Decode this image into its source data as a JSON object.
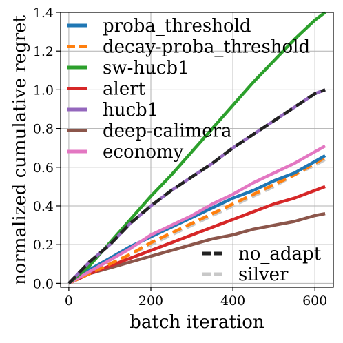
{
  "chart_data": {
    "type": "line",
    "title": "",
    "xlabel": "batch iteration",
    "ylabel": "normalized cumulative regret",
    "xlim": [
      -20,
      645
    ],
    "ylim": [
      -0.02,
      1.4
    ],
    "xticks": [
      0,
      200,
      400,
      600
    ],
    "yticks": [
      0.0,
      0.2,
      0.4,
      0.6,
      0.8,
      1.0,
      1.2,
      1.4
    ],
    "xtick_labels": [
      "0",
      "200",
      "400",
      "600"
    ],
    "ytick_labels": [
      "0.0",
      "0.2",
      "0.4",
      "0.6",
      "0.8",
      "1.0",
      "1.2",
      "1.4"
    ],
    "grid": true,
    "legend_placement": "top-left",
    "secondary_legend_placement": "bottom-right",
    "series": [
      {
        "name": "proba_threshold",
        "color": "#1f77b4",
        "style": "solid",
        "x": [
          0,
          50,
          100,
          150,
          200,
          250,
          300,
          350,
          400,
          450,
          500,
          550,
          600,
          625
        ],
        "y": [
          0.0,
          0.07,
          0.13,
          0.19,
          0.24,
          0.29,
          0.34,
          0.39,
          0.44,
          0.48,
          0.53,
          0.57,
          0.63,
          0.66
        ]
      },
      {
        "name": "decay-proba_threshold",
        "color": "#ff7f0e",
        "style": "dashed",
        "x": [
          0,
          50,
          100,
          150,
          200,
          250,
          300,
          350,
          400,
          450,
          500,
          550,
          600,
          625
        ],
        "y": [
          0.0,
          0.05,
          0.1,
          0.15,
          0.21,
          0.26,
          0.31,
          0.36,
          0.41,
          0.46,
          0.51,
          0.56,
          0.62,
          0.65
        ]
      },
      {
        "name": "sw-hucb1",
        "color": "#2ca02c",
        "style": "solid",
        "x": [
          0,
          50,
          100,
          150,
          200,
          250,
          300,
          350,
          400,
          450,
          500,
          550,
          600,
          625
        ],
        "y": [
          0.0,
          0.09,
          0.21,
          0.33,
          0.45,
          0.56,
          0.68,
          0.8,
          0.92,
          1.04,
          1.15,
          1.26,
          1.36,
          1.4
        ]
      },
      {
        "name": "alert",
        "color": "#d62728",
        "style": "solid",
        "x": [
          0,
          50,
          100,
          150,
          200,
          250,
          300,
          350,
          400,
          450,
          500,
          550,
          600,
          625
        ],
        "y": [
          0.0,
          0.05,
          0.09,
          0.13,
          0.17,
          0.21,
          0.25,
          0.29,
          0.33,
          0.37,
          0.41,
          0.44,
          0.48,
          0.5
        ]
      },
      {
        "name": "hucb1",
        "color": "#9467bd",
        "style": "solid",
        "x": [
          0,
          50,
          100,
          150,
          200,
          250,
          300,
          350,
          400,
          450,
          500,
          550,
          600,
          625
        ],
        "y": [
          0.0,
          0.11,
          0.2,
          0.31,
          0.4,
          0.48,
          0.55,
          0.62,
          0.7,
          0.77,
          0.84,
          0.91,
          0.98,
          1.0
        ]
      },
      {
        "name": "deep-calimera",
        "color": "#8c564b",
        "style": "solid",
        "x": [
          0,
          50,
          100,
          150,
          200,
          250,
          300,
          350,
          400,
          450,
          500,
          550,
          600,
          625
        ],
        "y": [
          0.0,
          0.05,
          0.08,
          0.11,
          0.14,
          0.17,
          0.2,
          0.23,
          0.25,
          0.28,
          0.3,
          0.32,
          0.35,
          0.36
        ]
      },
      {
        "name": "economy",
        "color": "#e377c2",
        "style": "solid",
        "x": [
          0,
          50,
          100,
          150,
          200,
          250,
          300,
          350,
          400,
          450,
          500,
          550,
          600,
          625
        ],
        "y": [
          0.0,
          0.06,
          0.12,
          0.18,
          0.25,
          0.3,
          0.35,
          0.41,
          0.46,
          0.52,
          0.57,
          0.62,
          0.68,
          0.71
        ]
      },
      {
        "name": "no_adapt",
        "color": "#222222",
        "style": "dashed",
        "x": [
          0,
          50,
          100,
          150,
          200,
          250,
          300,
          350,
          400,
          450,
          500,
          550,
          600,
          625
        ],
        "y": [
          0.0,
          0.11,
          0.2,
          0.31,
          0.4,
          0.48,
          0.55,
          0.62,
          0.7,
          0.77,
          0.84,
          0.91,
          0.98,
          1.0
        ]
      },
      {
        "name": "silver",
        "color": "#c8c8c8",
        "style": "dashed",
        "x": [
          0,
          50,
          100,
          150,
          200,
          250,
          300,
          350,
          400,
          450,
          500,
          550,
          600,
          625
        ],
        "y": [
          0.0,
          0.05,
          0.1,
          0.15,
          0.2,
          0.25,
          0.3,
          0.35,
          0.4,
          0.45,
          0.5,
          0.56,
          0.61,
          0.64
        ]
      }
    ],
    "legend_main": [
      "proba_threshold",
      "decay-proba_threshold",
      "sw-hucb1",
      "alert",
      "hucb1",
      "deep-calimera",
      "economy"
    ],
    "legend_secondary": [
      "no_adapt",
      "silver"
    ]
  }
}
